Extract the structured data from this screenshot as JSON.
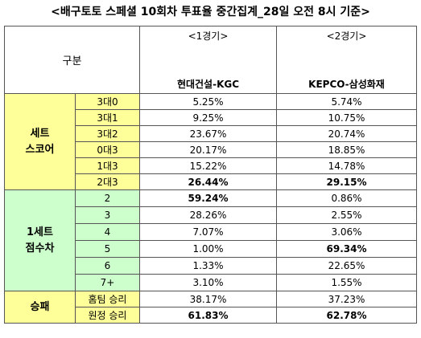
{
  "title": "<배구토토 스페셜 10회차 투표율 중간집계_28일 오전 8시 기준>",
  "header": {
    "category": "구분",
    "game1": "<1경기>",
    "game2": "<2경기>",
    "team1": "현대건설-KGC",
    "team2": "KEPCO-삼성화재"
  },
  "groups": [
    {
      "label": "세트\n스코어",
      "rows": [
        {
          "label": "3대0",
          "v1": "5.25%",
          "v2": "5.74%"
        },
        {
          "label": "3대1",
          "v1": "9.25%",
          "v2": "10.75%"
        },
        {
          "label": "3대2",
          "v1": "23.67%",
          "v2": "20.74%"
        },
        {
          "label": "0대3",
          "v1": "20.17%",
          "v2": "18.85%"
        },
        {
          "label": "1대3",
          "v1": "15.22%",
          "v2": "14.78%"
        },
        {
          "label": "2대3",
          "v1": "26.44%",
          "v2": "29.15%"
        }
      ]
    },
    {
      "label": "1세트\n점수차",
      "rows": [
        {
          "label": "2",
          "v1": "59.24%",
          "v2": "0.86%"
        },
        {
          "label": "3",
          "v1": "28.26%",
          "v2": "2.55%"
        },
        {
          "label": "4",
          "v1": "7.07%",
          "v2": "3.06%"
        },
        {
          "label": "5",
          "v1": "1.00%",
          "v2": "69.34%"
        },
        {
          "label": "6",
          "v1": "1.33%",
          "v2": "22.65%"
        },
        {
          "label": "7+",
          "v1": "3.10%",
          "v2": "1.55%"
        }
      ]
    },
    {
      "label": "승패",
      "rows": [
        {
          "label": "홈팀 승리",
          "v1": "38.17%",
          "v2": "37.23%"
        },
        {
          "label": "원정 승리",
          "v1": "61.83%",
          "v2": "62.78%"
        }
      ]
    }
  ]
}
